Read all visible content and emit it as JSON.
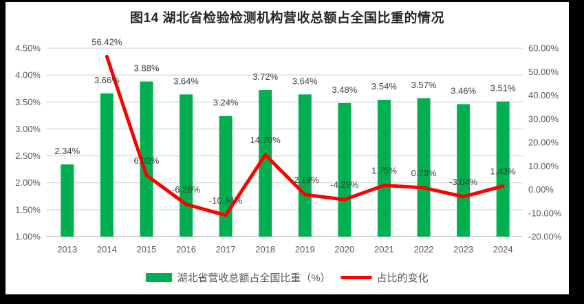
{
  "colors": {
    "frame_bg": "#000000",
    "panel_bg": "#FFFFFF",
    "grid": "#D9D9D9",
    "axis_line": "#BFBFBF",
    "axis_text": "#595959",
    "data_label_text": "#404040",
    "title_text": "#262626",
    "bar": "#00B050",
    "line": "#FF0000"
  },
  "chart_data": {
    "type": "combo-bar-line",
    "title": "图14 湖北省检验检测机构营收总额占全国比重的情况",
    "categories": [
      "2013",
      "2014",
      "2015",
      "2016",
      "2017",
      "2018",
      "2019",
      "2020",
      "2021",
      "2022",
      "2023",
      "2024"
    ],
    "series": [
      {
        "name": "湖北省营收总额占全国比重（%）",
        "type": "bar",
        "axis": "left",
        "color": "#00B050",
        "values": [
          2.34,
          3.66,
          3.88,
          3.64,
          3.24,
          3.72,
          3.64,
          3.48,
          3.54,
          3.57,
          3.46,
          3.51
        ],
        "labels": [
          "2.34%",
          "3.66%",
          "3.88%",
          "3.64%",
          "3.24%",
          "3.72%",
          "3.64%",
          "3.48%",
          "3.54%",
          "3.57%",
          "3.46%",
          "3.51%"
        ]
      },
      {
        "name": "占比的变化",
        "type": "line",
        "axis": "right",
        "color": "#FF0000",
        "values": [
          null,
          56.42,
          6.02,
          -6.28,
          -10.94,
          14.7,
          -2.19,
          -4.29,
          1.75,
          0.73,
          -3.04,
          1.43
        ],
        "labels": [
          null,
          "56.42%",
          "6.02%",
          "-6.28%",
          "-10.94%",
          "14.70%",
          "-2.19%",
          "-4.29%",
          "1.75%",
          "0.73%",
          "-3.04%",
          "1.43%"
        ]
      }
    ],
    "left_axis": {
      "min": 1.0,
      "max": 4.5,
      "tick_labels": [
        "4.50%",
        "4.00%",
        "3.50%",
        "3.00%",
        "2.50%",
        "2.00%",
        "1.50%",
        "1.00%"
      ]
    },
    "right_axis": {
      "min": -20,
      "max": 60,
      "tick_labels": [
        "60.00%",
        "50.00%",
        "40.00%",
        "30.00%",
        "20.00%",
        "10.00%",
        "0.00%",
        "-10.00%",
        "-20.00%"
      ]
    },
    "grid": true,
    "legend_position": "bottom"
  },
  "legend": {
    "items": [
      {
        "label": "湖北省营收总额占全国比重（%）",
        "swatch": "bar"
      },
      {
        "label": "占比的变化",
        "swatch": "line"
      }
    ]
  }
}
